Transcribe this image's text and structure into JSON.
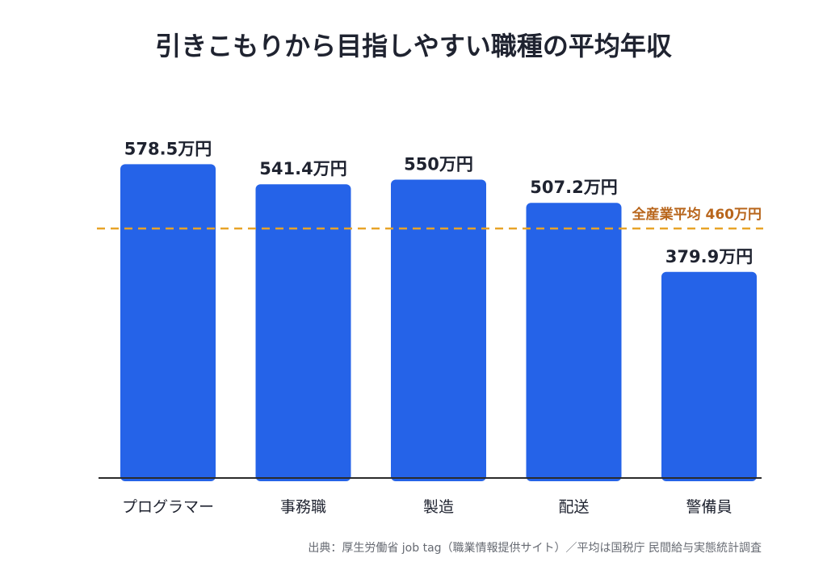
{
  "chart_data": {
    "type": "bar",
    "title": "引きこもりから目指しやすい職種の平均年収",
    "categories": [
      "プログラマー",
      "事務職",
      "製造",
      "配送",
      "警備員"
    ],
    "values": [
      578.5,
      541.4,
      550,
      507.2,
      379.9
    ],
    "value_labels": [
      "578.5万円",
      "541.4万円",
      "550万円",
      "507.2万円",
      "379.9万円"
    ],
    "ylim": [
      0,
      640
    ],
    "grid": false,
    "legend": "none",
    "reference_line": {
      "value": 460,
      "label": "全産業平均 460万円",
      "style": "dashed",
      "color": "#e8a328",
      "label_color": "#b8651b"
    },
    "source": "出典：厚生労働省 job tag（職業情報提供サイト）／平均は国税庁 民間給与実態統計調査"
  },
  "colors": {
    "bar": "#2563e8",
    "axis": "#2b2b2b",
    "text": "#1f2330",
    "source": "#666a72"
  }
}
